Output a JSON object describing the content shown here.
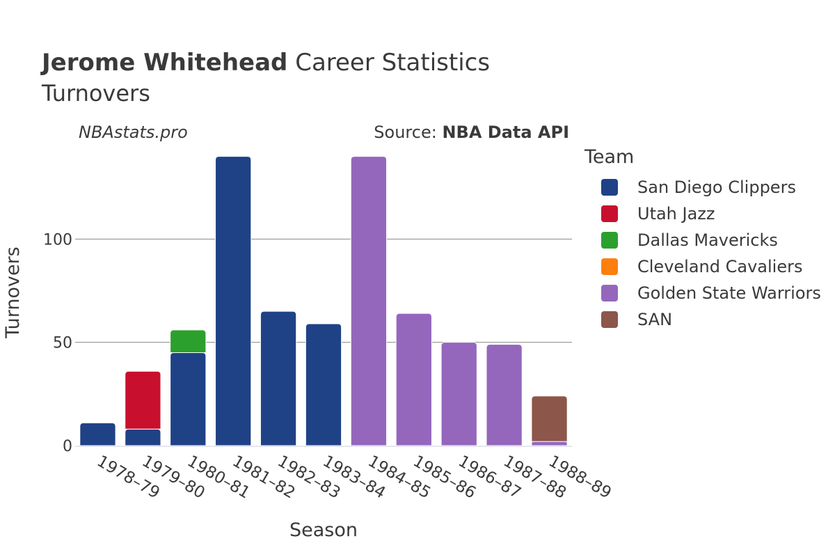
{
  "header": {
    "title_bold": "Jerome Whitehead",
    "title_rest": " Career Statistics",
    "subtitle": "Turnovers",
    "watermark": "NBAstats.pro",
    "source_prefix": "Source: ",
    "source_name": "NBA Data API"
  },
  "chart_data": {
    "type": "bar",
    "stacked": true,
    "xlabel": "Season",
    "ylabel": "Turnovers",
    "ylim": [
      0,
      150
    ],
    "yticks": [
      0,
      50,
      100
    ],
    "legend_title": "Team",
    "legend_position": "right",
    "grid": true,
    "categories": [
      "1978–79",
      "1979–80",
      "1980–81",
      "1981–82",
      "1982–83",
      "1983–84",
      "1984–85",
      "1985–86",
      "1986–87",
      "1987–88",
      "1988–89"
    ],
    "series": [
      {
        "name": "San Diego Clippers",
        "color": "#1f4287",
        "values": [
          11,
          8,
          45,
          140,
          65,
          59,
          0,
          0,
          0,
          0,
          0
        ]
      },
      {
        "name": "Utah Jazz",
        "color": "#c8102e",
        "values": [
          0,
          28,
          0,
          0,
          0,
          0,
          0,
          0,
          0,
          0,
          0
        ]
      },
      {
        "name": "Dallas Mavericks",
        "color": "#2ca02c",
        "values": [
          0,
          0,
          11,
          0,
          0,
          0,
          0,
          0,
          0,
          0,
          0
        ]
      },
      {
        "name": "Cleveland Cavaliers",
        "color": "#ff7f0e",
        "values": [
          0,
          0,
          0,
          0,
          0,
          0,
          0,
          0,
          0,
          0,
          0
        ]
      },
      {
        "name": "Golden State Warriors",
        "color": "#9467bd",
        "values": [
          0,
          0,
          0,
          0,
          0,
          0,
          140,
          64,
          50,
          49,
          2
        ]
      },
      {
        "name": "SAN",
        "color": "#8c564b",
        "values": [
          0,
          0,
          0,
          0,
          0,
          0,
          0,
          0,
          0,
          0,
          22
        ]
      }
    ]
  }
}
